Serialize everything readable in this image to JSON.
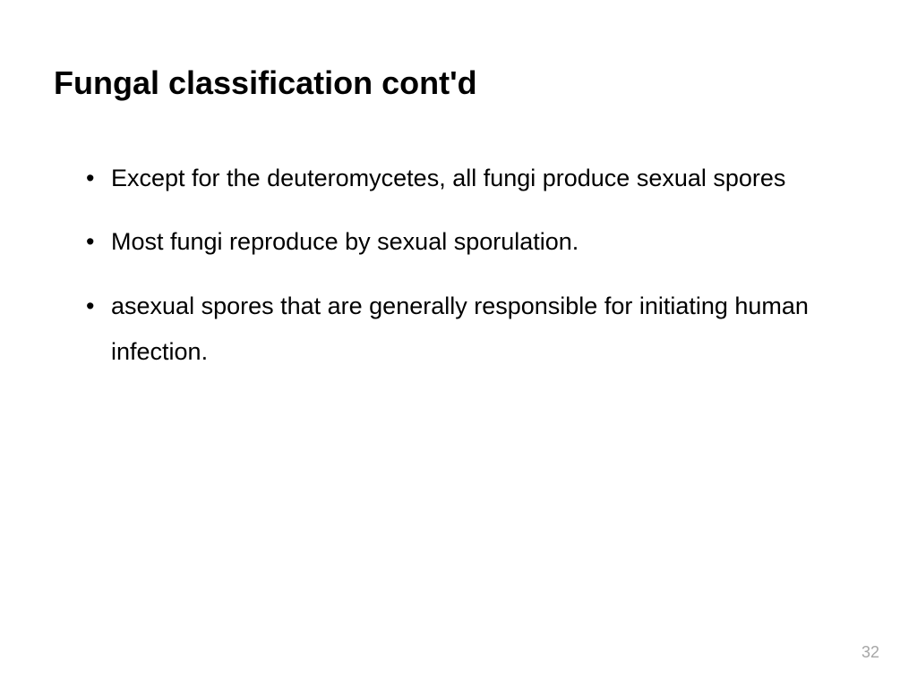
{
  "slide": {
    "title": "Fungal classification cont'd",
    "bullets": [
      "Except for the deuteromycetes, all fungi produce sexual spores",
      " Most fungi reproduce by sexual sporulation.",
      "asexual spores that are generally responsible for initiating human  infection."
    ],
    "page_number": "32",
    "background_color": "#ffffff",
    "title_color": "#000000",
    "title_fontsize": 36,
    "title_fontweight": "bold",
    "body_color": "#000000",
    "body_fontsize": 27,
    "page_number_color": "#a6a6a6",
    "page_number_fontsize": 18,
    "font_family": "Arial, Helvetica, sans-serif"
  }
}
